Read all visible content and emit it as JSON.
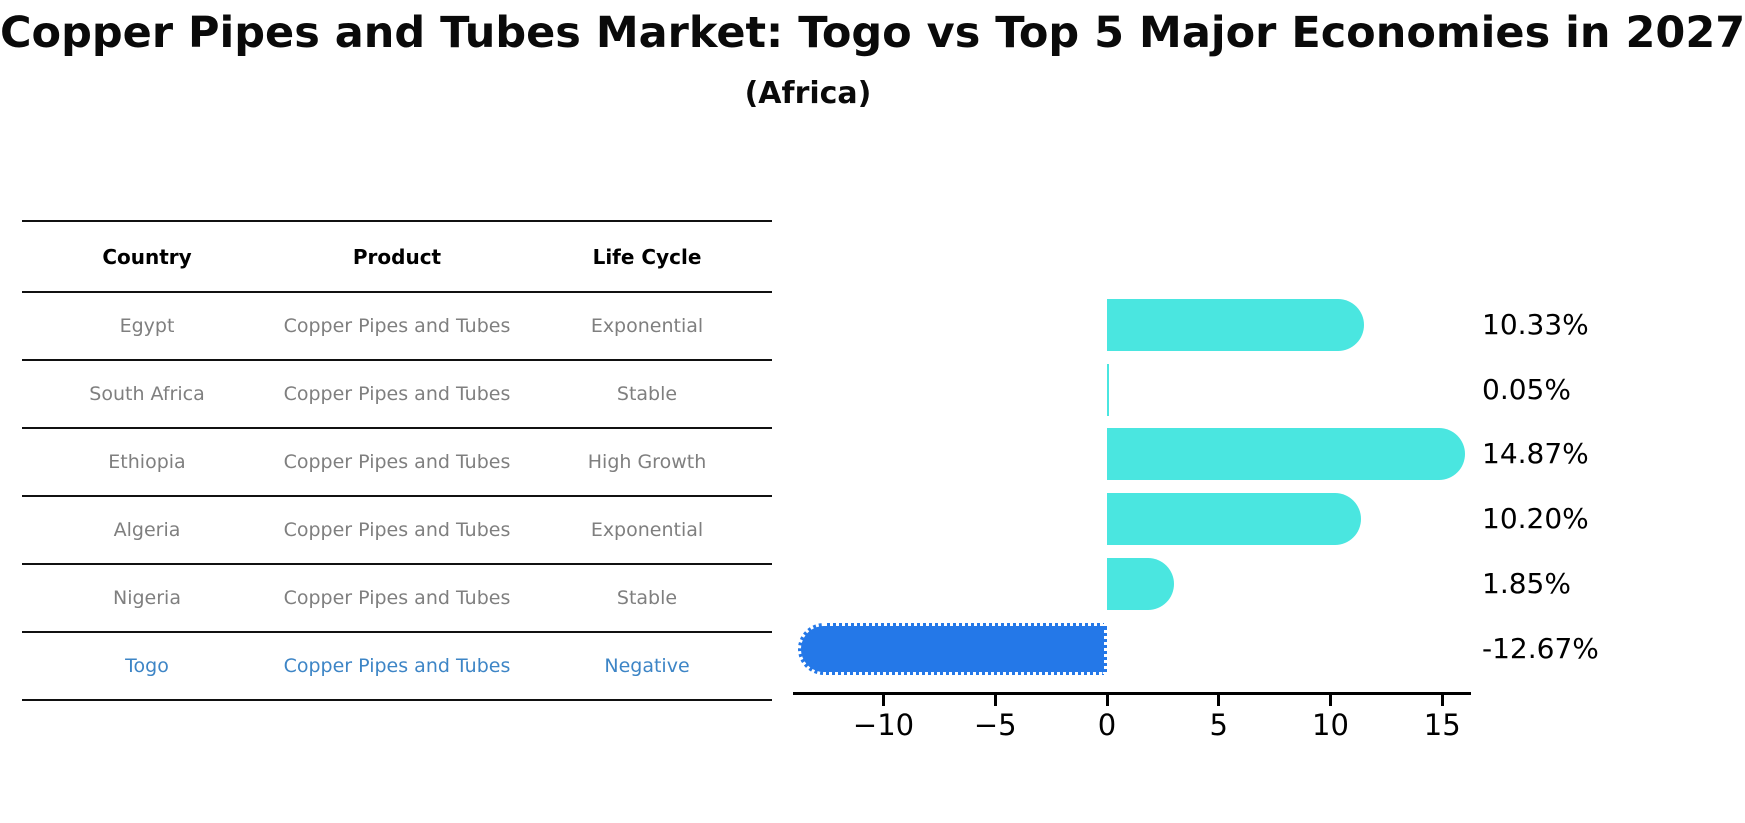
{
  "header": {
    "title": "Copper Pipes and Tubes Market: Togo vs Top 5 Major Economies in 2027",
    "subtitle": "(Africa)"
  },
  "table": {
    "columns": [
      "Country",
      "Product",
      "Life Cycle"
    ],
    "rows": [
      {
        "country": "Egypt",
        "product": "Copper Pipes and Tubes",
        "life_cycle": "Exponential",
        "highlight": false
      },
      {
        "country": "South Africa",
        "product": "Copper Pipes and Tubes",
        "life_cycle": "Stable",
        "highlight": false
      },
      {
        "country": "Ethiopia",
        "product": "Copper Pipes and Tubes",
        "life_cycle": "High Growth",
        "highlight": false
      },
      {
        "country": "Algeria",
        "product": "Copper Pipes and Tubes",
        "life_cycle": "Exponential",
        "highlight": false
      },
      {
        "country": "Nigeria",
        "product": "Copper Pipes and Tubes",
        "life_cycle": "Stable",
        "highlight": false
      },
      {
        "country": "Togo",
        "product": "Copper Pipes and Tubes",
        "life_cycle": "Negative",
        "highlight": true
      }
    ]
  },
  "chart_data": {
    "type": "bar",
    "orientation": "horizontal",
    "title": "Copper Pipes and Tubes Market: Togo vs Top 5 Major Economies in 2027",
    "subtitle": "(Africa)",
    "categories": [
      "Egypt",
      "South Africa",
      "Ethiopia",
      "Algeria",
      "Nigeria",
      "Togo"
    ],
    "values": [
      10.33,
      0.05,
      14.87,
      10.2,
      1.85,
      -12.67
    ],
    "value_labels": [
      "10.33%",
      "0.05%",
      "14.87%",
      "10.20%",
      "1.85%",
      "-12.67%"
    ],
    "xticks": [
      -10,
      -5,
      0,
      5,
      10,
      15
    ],
    "xlim": [
      -14.05,
      16.25
    ],
    "grid": false,
    "legend": false,
    "bar_color_positive": "#4AE6E0",
    "bar_color_negative": "#2478E8",
    "negative_bar_edge": "white dotted",
    "highlight_text_color": "#3d85c6",
    "value_label_color": "#000000"
  }
}
